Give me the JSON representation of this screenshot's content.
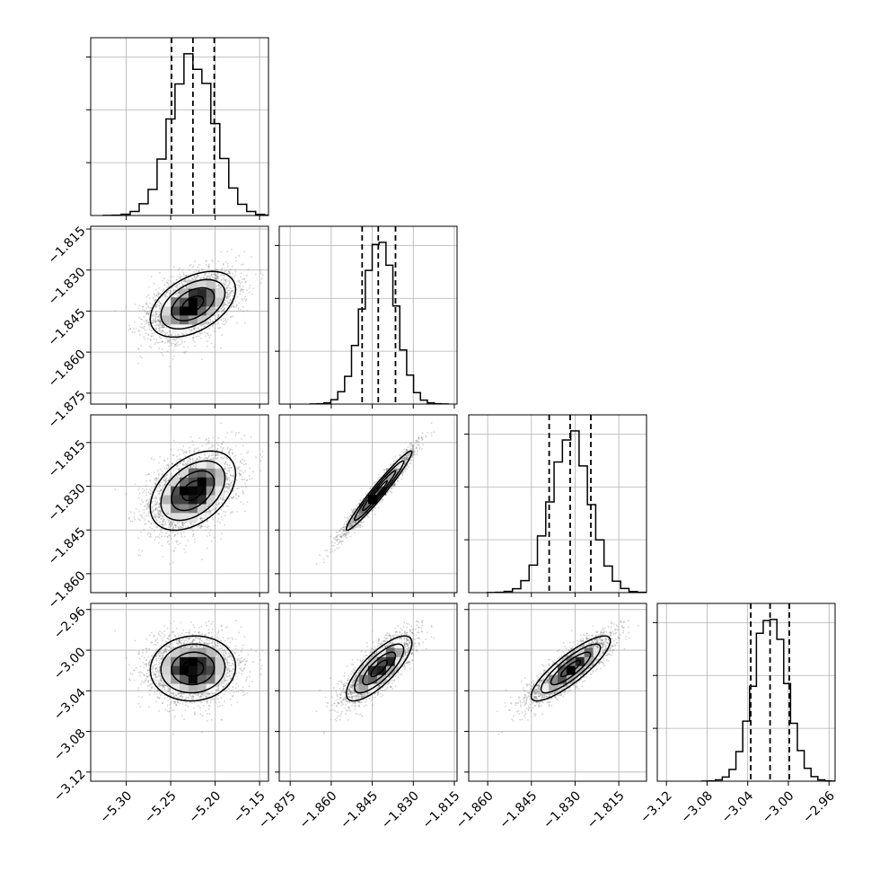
{
  "chart_data": {
    "type": "corner",
    "grid": true,
    "hist_line_color": "#000000",
    "scatter_color": "#808080",
    "density_fill_dark": "#000000",
    "parameters": [
      {
        "id": "p0",
        "range": [
          -5.34,
          -5.14
        ],
        "ticks": [
          -5.3,
          -5.25,
          -5.2,
          -5.15
        ],
        "tick_labels": [
          "−5.30",
          "−5.25",
          "−5.20",
          "−5.15"
        ],
        "mean": -5.225,
        "sd": 0.024,
        "quantiles": [
          -5.249,
          -5.225,
          -5.201
        ]
      },
      {
        "id": "p1",
        "range": [
          -1.879,
          -1.814
        ],
        "ticks": [
          -1.875,
          -1.86,
          -1.845,
          -1.83,
          -1.815
        ],
        "tick_labels": [
          "−1.875",
          "−1.860",
          "−1.845",
          "−1.830",
          "−1.815"
        ],
        "mean": -1.8425,
        "sd": 0.006,
        "quantiles": [
          -1.8487,
          -1.8428,
          -1.8365
        ]
      },
      {
        "id": "p2",
        "range": [
          -1.8665,
          -1.8055
        ],
        "ticks": [
          -1.86,
          -1.845,
          -1.83,
          -1.815
        ],
        "tick_labels": [
          "−1.860",
          "−1.845",
          "−1.830",
          "−1.815"
        ],
        "mean": -1.8315,
        "sd": 0.0068,
        "quantiles": [
          -1.8389,
          -1.8317,
          -1.8246
        ]
      },
      {
        "id": "p3",
        "range": [
          -3.129,
          -2.954
        ],
        "ticks": [
          -3.12,
          -3.08,
          -3.04,
          -3.0,
          -2.96
        ],
        "tick_labels": [
          "−3.12",
          "−3.08",
          "−3.04",
          "−3.00",
          "−2.96"
        ],
        "mean": -3.018,
        "sd": 0.016,
        "quantiles": [
          -3.037,
          -3.018,
          -2.999
        ]
      }
    ],
    "correlations": [
      {
        "x": "p0",
        "y": "p1",
        "r": 0.45
      },
      {
        "x": "p0",
        "y": "p2",
        "r": 0.42
      },
      {
        "x": "p1",
        "y": "p2",
        "r": 0.97
      },
      {
        "x": "p0",
        "y": "p3",
        "r": 0.05
      },
      {
        "x": "p1",
        "y": "p3",
        "r": 0.78
      },
      {
        "x": "p2",
        "y": "p3",
        "r": 0.85
      }
    ],
    "contour_levels_sigma": [
      0.5,
      1.0,
      1.5,
      2.0
    ]
  }
}
